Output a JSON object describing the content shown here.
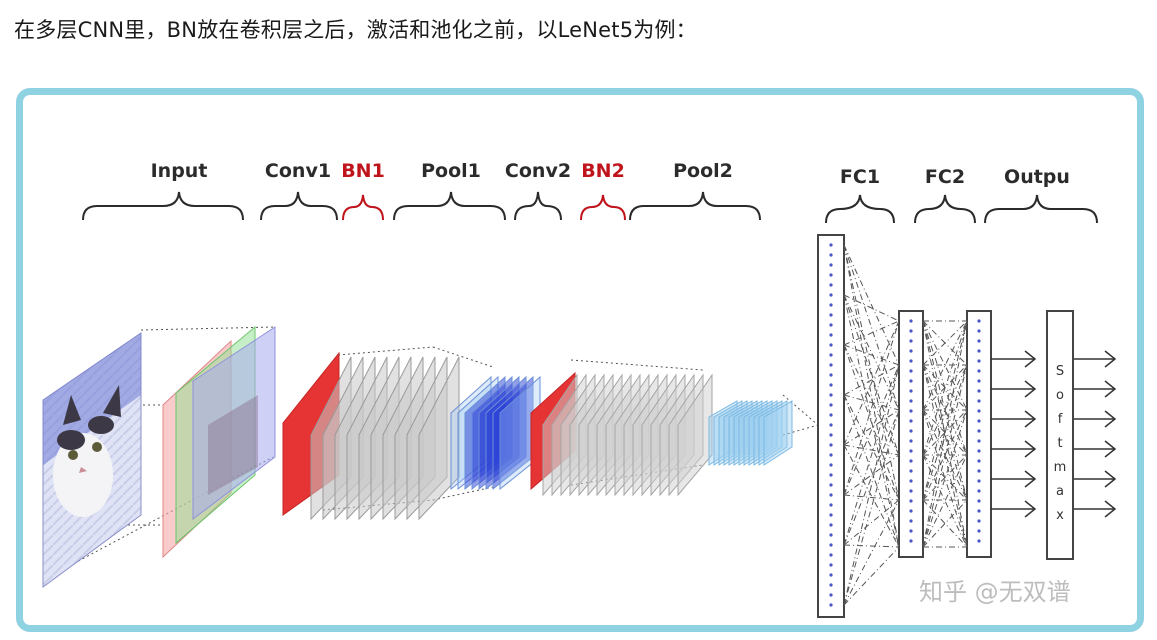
{
  "caption": "在多层CNN里，BN放在卷积层之后，激活和池化之前，以LeNet5为例：",
  "diagram": {
    "colors": {
      "frame": "#8fd3e2",
      "bn_highlight": "#c0141c",
      "label": "#2b2b2b",
      "feature_gray": "#bdbdbd",
      "bn_red": "#e63333",
      "pool_blue": "#2a3fd6",
      "pool2_blue": "#9fd0f0"
    },
    "stages": [
      {
        "id": "input",
        "label": "Input",
        "highlight": false
      },
      {
        "id": "conv1",
        "label": "Conv1",
        "highlight": false
      },
      {
        "id": "bn1",
        "label": "BN1",
        "highlight": true
      },
      {
        "id": "pool1",
        "label": "Pool1",
        "highlight": false
      },
      {
        "id": "conv2",
        "label": "Conv2",
        "highlight": false
      },
      {
        "id": "bn2",
        "label": "BN2",
        "highlight": true
      },
      {
        "id": "pool2",
        "label": "Pool2",
        "highlight": false
      },
      {
        "id": "fc1",
        "label": "FC1",
        "highlight": false
      },
      {
        "id": "fc2",
        "label": "FC2",
        "highlight": false
      },
      {
        "id": "output",
        "label": "Outpu",
        "highlight": false
      }
    ],
    "softmax_letters": [
      "S",
      "o",
      "f",
      "t",
      "m",
      "a",
      "x"
    ],
    "input_image_icon": "cat-photo",
    "watermark": "知乎 @无双谱"
  }
}
